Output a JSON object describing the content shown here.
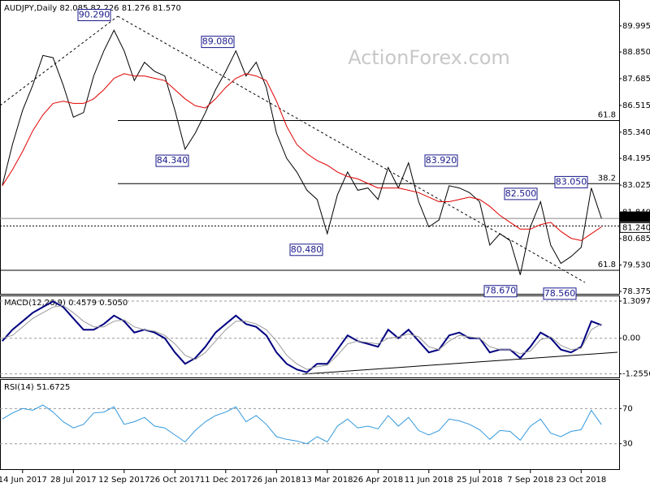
{
  "chart_data": [
    {
      "type": "line",
      "title": "AUDJPY,Daily  82.085 82.226 81.276 81.570",
      "watermark": "ActionForex.com",
      "categories": [
        null,
        null,
        "14 Jun 2017",
        null,
        null,
        null,
        null,
        "28 Jul 2017",
        null,
        null,
        null,
        null,
        "12 Sep 2017",
        null,
        null,
        null,
        null,
        "26 Oct 2017",
        null,
        null,
        null,
        null,
        "11 Dec 2017",
        null,
        null,
        null,
        null,
        "26 Jan 2018",
        null,
        null,
        null,
        null,
        "13 Mar 2018",
        null,
        null,
        null,
        null,
        "26 Apr 2018",
        null,
        null,
        null,
        null,
        "11 Jun 2018",
        null,
        null,
        null,
        null,
        "25 Jul 2018",
        null,
        null,
        null,
        null,
        "7 Sep 2018",
        null,
        null,
        null,
        null,
        "23 Oct 2018",
        null,
        null
      ],
      "series": [
        {
          "color": "#000000",
          "values": [
            83.0,
            84.8,
            86.3,
            87.4,
            88.7,
            88.6,
            87.4,
            86.0,
            86.2,
            87.8,
            88.9,
            89.8,
            88.9,
            87.6,
            88.4,
            88.0,
            87.8,
            86.3,
            84.6,
            85.3,
            86.2,
            87.2,
            88.0,
            88.9,
            87.8,
            88.4,
            87.3,
            85.3,
            84.2,
            83.6,
            82.8,
            82.4,
            80.9,
            82.6,
            83.6,
            82.8,
            82.9,
            82.4,
            83.8,
            82.9,
            84.0,
            82.3,
            81.2,
            81.5,
            83.0,
            82.9,
            82.7,
            82.3,
            80.4,
            80.9,
            80.6,
            79.1,
            81.2,
            82.3,
            80.4,
            79.6,
            79.9,
            80.3,
            82.9,
            81.57
          ]
        },
        {
          "color": "#e00000",
          "values": [
            83.0,
            83.7,
            84.5,
            85.4,
            86.1,
            86.6,
            86.7,
            86.6,
            86.6,
            86.8,
            87.2,
            87.7,
            87.9,
            87.8,
            87.8,
            87.7,
            87.6,
            87.2,
            86.8,
            86.5,
            86.4,
            86.8,
            87.3,
            87.7,
            87.9,
            87.8,
            87.6,
            86.7,
            85.6,
            84.8,
            84.4,
            84.1,
            83.9,
            83.6,
            83.4,
            83.3,
            83.1,
            82.9,
            82.9,
            82.9,
            82.8,
            82.7,
            82.5,
            82.3,
            82.3,
            82.4,
            82.5,
            82.4,
            82.1,
            81.7,
            81.4,
            81.1,
            81.1,
            81.3,
            81.4,
            81.0,
            80.7,
            80.6,
            80.9,
            81.2
          ]
        }
      ],
      "ylim": [
        78.27,
        91.09
      ],
      "yticks": [
        89.995,
        {
          "value": 88.85,
          "label": "88.850"
        },
        87.685,
        86.515,
        {
          "value": 85.34,
          "label": "85.340"
        },
        84.195,
        83.025,
        {
          "value": 81.84,
          "label": "81.840"
        },
        80.685,
        {
          "value": 79.53,
          "label": "79.530"
        },
        78.375
      ],
      "levels": [
        {
          "value": 85.85,
          "label": "61.8"
        },
        {
          "value": 83.09,
          "label": "38.2"
        },
        {
          "value": 79.3,
          "label": "61.8"
        }
      ],
      "price_lines": [
        {
          "value": 81.57,
          "label": "81.570"
        },
        {
          "value": 81.24,
          "label": "81.240"
        }
      ],
      "annotations": [
        {
          "value": 90.29,
          "label": "90.290"
        },
        {
          "value": 89.08,
          "label": "89.080"
        },
        {
          "value": 84.34,
          "label": "84.340"
        },
        {
          "value": 80.48,
          "label": "80.480"
        },
        {
          "value": 83.92,
          "label": "83.920"
        },
        {
          "value": 82.5,
          "label": "82.500"
        },
        {
          "value": 83.05,
          "label": "83.050"
        },
        {
          "value": 78.67,
          "label": "78.670"
        },
        {
          "value": 78.56,
          "label": "78.560"
        }
      ]
    },
    {
      "type": "line",
      "title": "MACD(12,26,9) 0.4579 0.5050",
      "series": [
        {
          "color": "#000080",
          "values": [
            -0.1,
            0.3,
            0.6,
            0.9,
            1.1,
            1.3,
            1.1,
            0.7,
            0.3,
            0.3,
            0.5,
            0.8,
            0.6,
            0.2,
            0.3,
            0.2,
            0.0,
            -0.5,
            -0.9,
            -0.7,
            -0.3,
            0.2,
            0.5,
            0.8,
            0.5,
            0.4,
            0.1,
            -0.5,
            -0.9,
            -1.1,
            -1.2,
            -0.9,
            -0.9,
            -0.4,
            0.1,
            -0.1,
            -0.2,
            -0.3,
            0.3,
            0.0,
            0.3,
            -0.1,
            -0.5,
            -0.4,
            0.1,
            0.2,
            0.0,
            0.0,
            -0.5,
            -0.4,
            -0.4,
            -0.7,
            -0.3,
            0.2,
            0.0,
            -0.4,
            -0.5,
            -0.3,
            0.6,
            0.46
          ]
        },
        {
          "color": "#999999",
          "values": [
            0.0,
            0.1,
            0.4,
            0.7,
            0.9,
            1.1,
            1.15,
            0.9,
            0.6,
            0.4,
            0.4,
            0.6,
            0.65,
            0.4,
            0.3,
            0.25,
            0.1,
            -0.2,
            -0.6,
            -0.75,
            -0.5,
            -0.1,
            0.3,
            0.6,
            0.6,
            0.5,
            0.3,
            -0.1,
            -0.6,
            -0.9,
            -1.1,
            -1.0,
            -0.95,
            -0.6,
            -0.2,
            -0.1,
            -0.15,
            -0.2,
            0.0,
            0.05,
            0.15,
            0.05,
            -0.3,
            -0.4,
            -0.1,
            0.1,
            0.05,
            0.0,
            -0.3,
            -0.4,
            -0.4,
            -0.55,
            -0.45,
            -0.05,
            0.05,
            -0.25,
            -0.4,
            -0.35,
            0.3,
            0.51
          ]
        }
      ],
      "ylim": [
        -1.41,
        1.48
      ],
      "yticks": [
        1.3097,
        {
          "value": 0,
          "label": "0.00"
        },
        -1.2556
      ]
    },
    {
      "type": "line",
      "title": "RSI(14) 51.6725",
      "series": [
        {
          "color": "#3399dd",
          "values": [
            58,
            65,
            70,
            68,
            74,
            66,
            55,
            48,
            52,
            65,
            66,
            72,
            52,
            55,
            60,
            50,
            48,
            40,
            32,
            45,
            55,
            62,
            66,
            72,
            55,
            62,
            52,
            38,
            35,
            33,
            30,
            38,
            32,
            50,
            58,
            48,
            50,
            47,
            62,
            50,
            60,
            45,
            40,
            45,
            58,
            56,
            52,
            46,
            35,
            45,
            44,
            34,
            50,
            58,
            42,
            38,
            44,
            46,
            68,
            51.67
          ]
        }
      ],
      "ylim": [
        0.2,
        102.6
      ],
      "yticks": [
        30,
        70
      ]
    }
  ]
}
